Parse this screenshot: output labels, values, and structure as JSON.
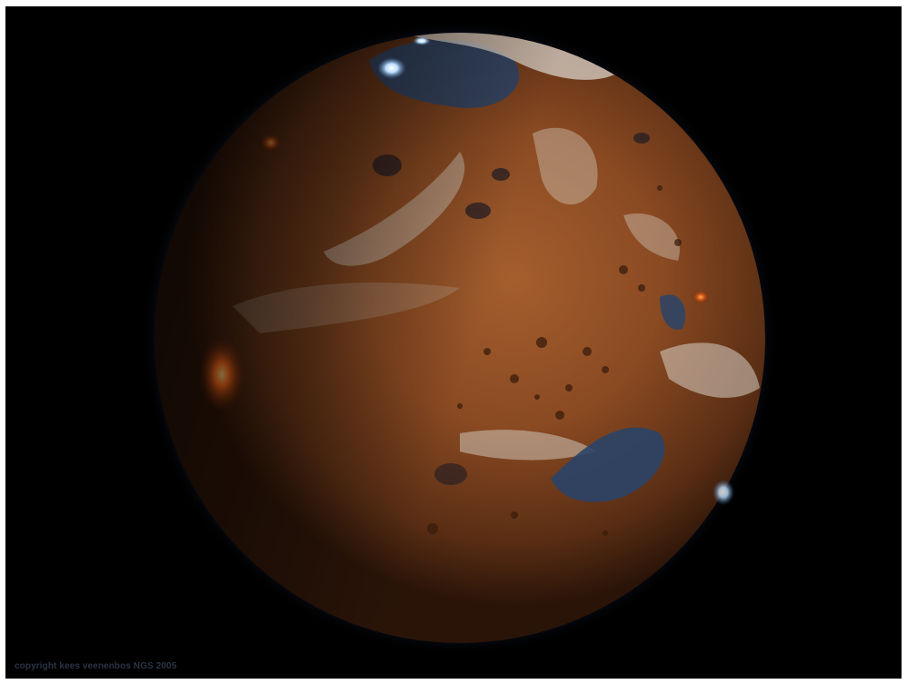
{
  "image": {
    "subject": "planet-illustration",
    "colors": {
      "background": "#000000",
      "frame": "#ffffff",
      "surface": "#8a4a22",
      "surface_dark": "#2a1408",
      "water": "#2a4468",
      "clouds": "#d8d2c8",
      "atmosphere_glow": "#5a78b0",
      "lava": "#ff6a1a"
    }
  },
  "watermark": {
    "text": "copyright kees veenenbos NGS 2005"
  }
}
